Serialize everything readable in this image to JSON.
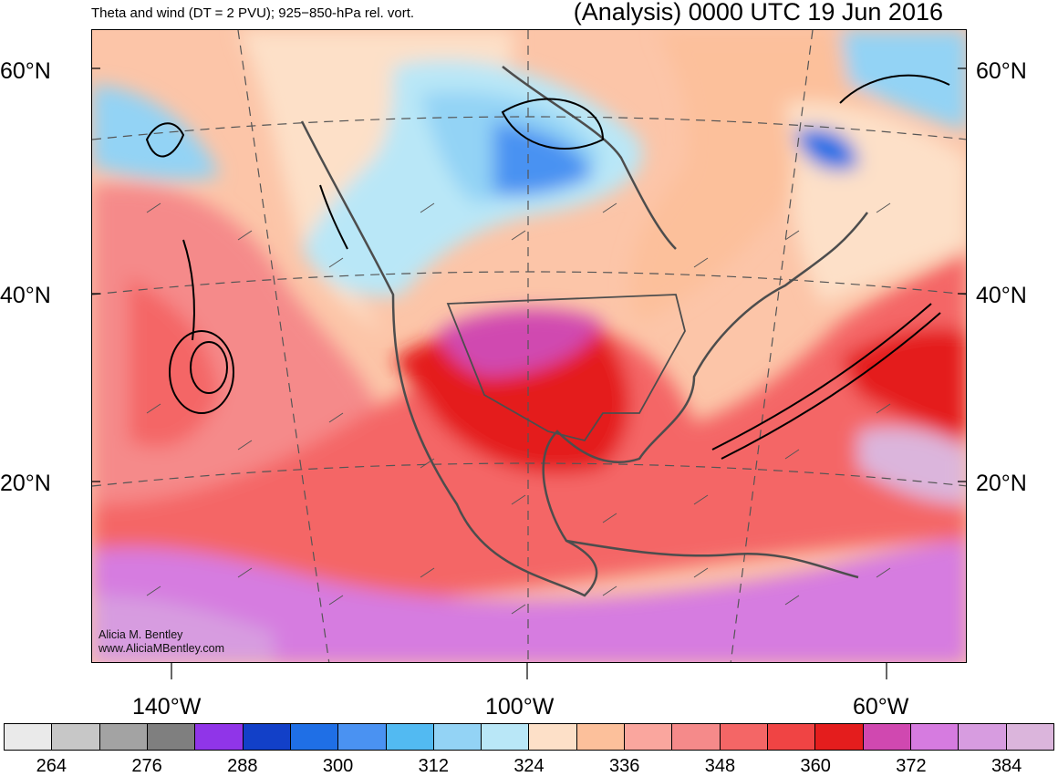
{
  "header": {
    "left_title": "Theta and wind (DT = 2 PVU); 925−850-hPa rel. vort.",
    "right_title": "(Analysis) 0000 UTC 19 Jun 2016"
  },
  "latitude_labels": [
    "60°N",
    "40°N",
    "20°N"
  ],
  "longitude_labels": [
    "140°W",
    "100°W",
    "60°W"
  ],
  "credit": {
    "line1": "Alicia M. Bentley",
    "line2": "www.AliciaMBentley.com"
  },
  "colorbar": {
    "colors": [
      "#eaeaea",
      "#c7c7c7",
      "#a3a3a3",
      "#7f7f7f",
      "#9035e8",
      "#1240c8",
      "#1f6fe6",
      "#4a92f2",
      "#52baf2",
      "#93d3f5",
      "#b9e7f7",
      "#fde0c8",
      "#fcc09b",
      "#faa69e",
      "#f58a8a",
      "#f46666",
      "#f04444",
      "#e41d1d",
      "#d048b0",
      "#d67be0",
      "#d79ce0",
      "#dbb5dc"
    ],
    "tick_labels": [
      "264",
      "276",
      "288",
      "300",
      "312",
      "324",
      "336",
      "348",
      "360",
      "372",
      "384"
    ]
  }
}
